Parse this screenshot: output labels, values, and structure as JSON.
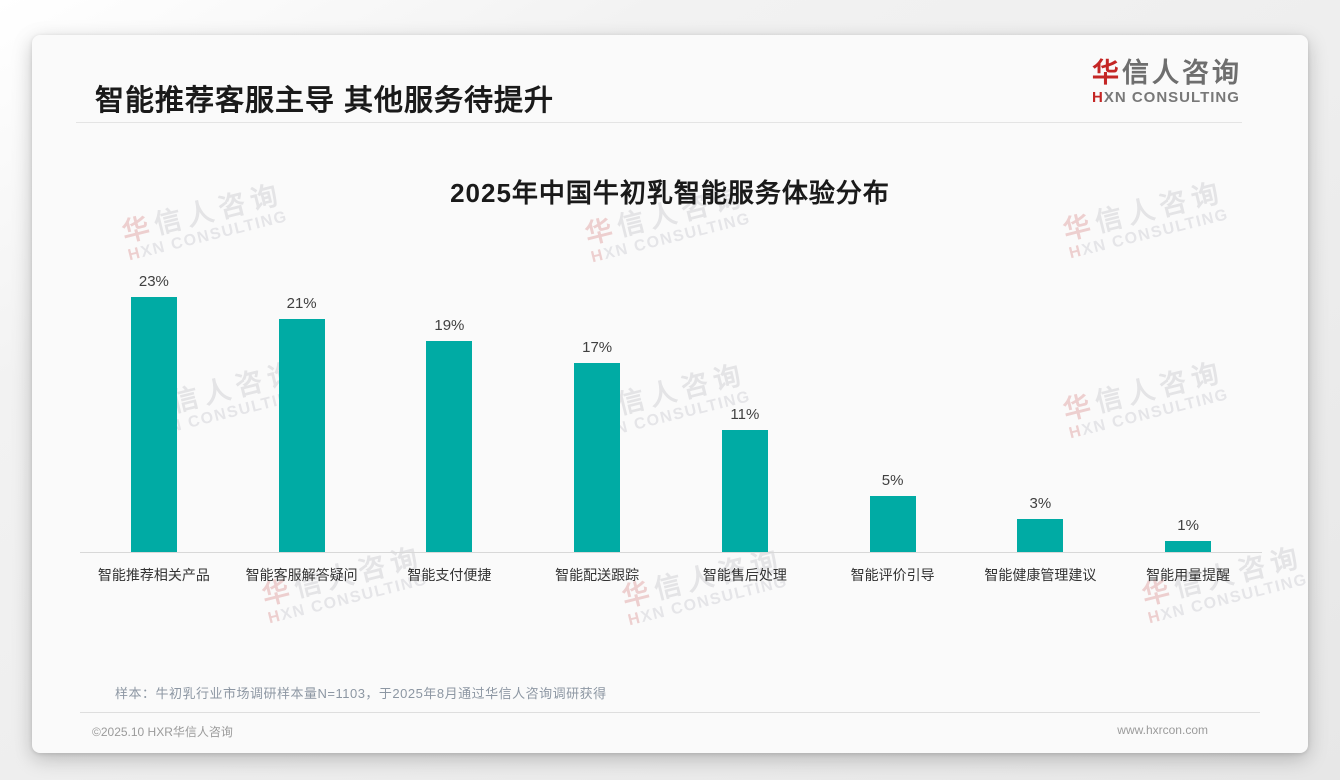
{
  "page": {
    "title": "智能推荐客服主导 其他服务待提升",
    "note": "样本：牛初乳行业市场调研样本量N=1103，于2025年8月通过华信人咨询调研获得",
    "footer_left": "©2025.10 HXR华信人咨询",
    "footer_right": "www.hxrcon.com"
  },
  "logo": {
    "cn_first": "华",
    "cn_rest": "信人咨询",
    "en_first": "H",
    "en_rest": "XN CONSULTING"
  },
  "watermark": {
    "cn_first": "华",
    "cn_rest": "信人咨询",
    "en_first": "H",
    "en_rest": "XN CONSULTING"
  },
  "chart_data": {
    "type": "bar",
    "title": "2025年中国牛初乳智能服务体验分布",
    "categories": [
      "智能推荐相关产品",
      "智能客服解答疑问",
      "智能支付便捷",
      "智能配送跟踪",
      "智能售后处理",
      "智能评价引导",
      "智能健康管理建议",
      "智能用量提醒"
    ],
    "values": [
      23,
      21,
      19,
      17,
      11,
      5,
      3,
      1
    ],
    "value_labels": [
      "23%",
      "21%",
      "19%",
      "17%",
      "11%",
      "5%",
      "3%",
      "1%"
    ],
    "unit": "%",
    "ylim": [
      0,
      25
    ],
    "bar_color": "#00aba4",
    "grid": false,
    "legend": false,
    "value_labels_position": "above-bars",
    "axis_line_color": "#d8d8d8"
  },
  "colors": {
    "accent_teal": "#00aba4",
    "brand_red": "#c42625",
    "title_text": "#1a1a1a",
    "note_text": "#8d97a3",
    "footer_text": "#9b9b9b",
    "card_bg": "#fafafa"
  }
}
